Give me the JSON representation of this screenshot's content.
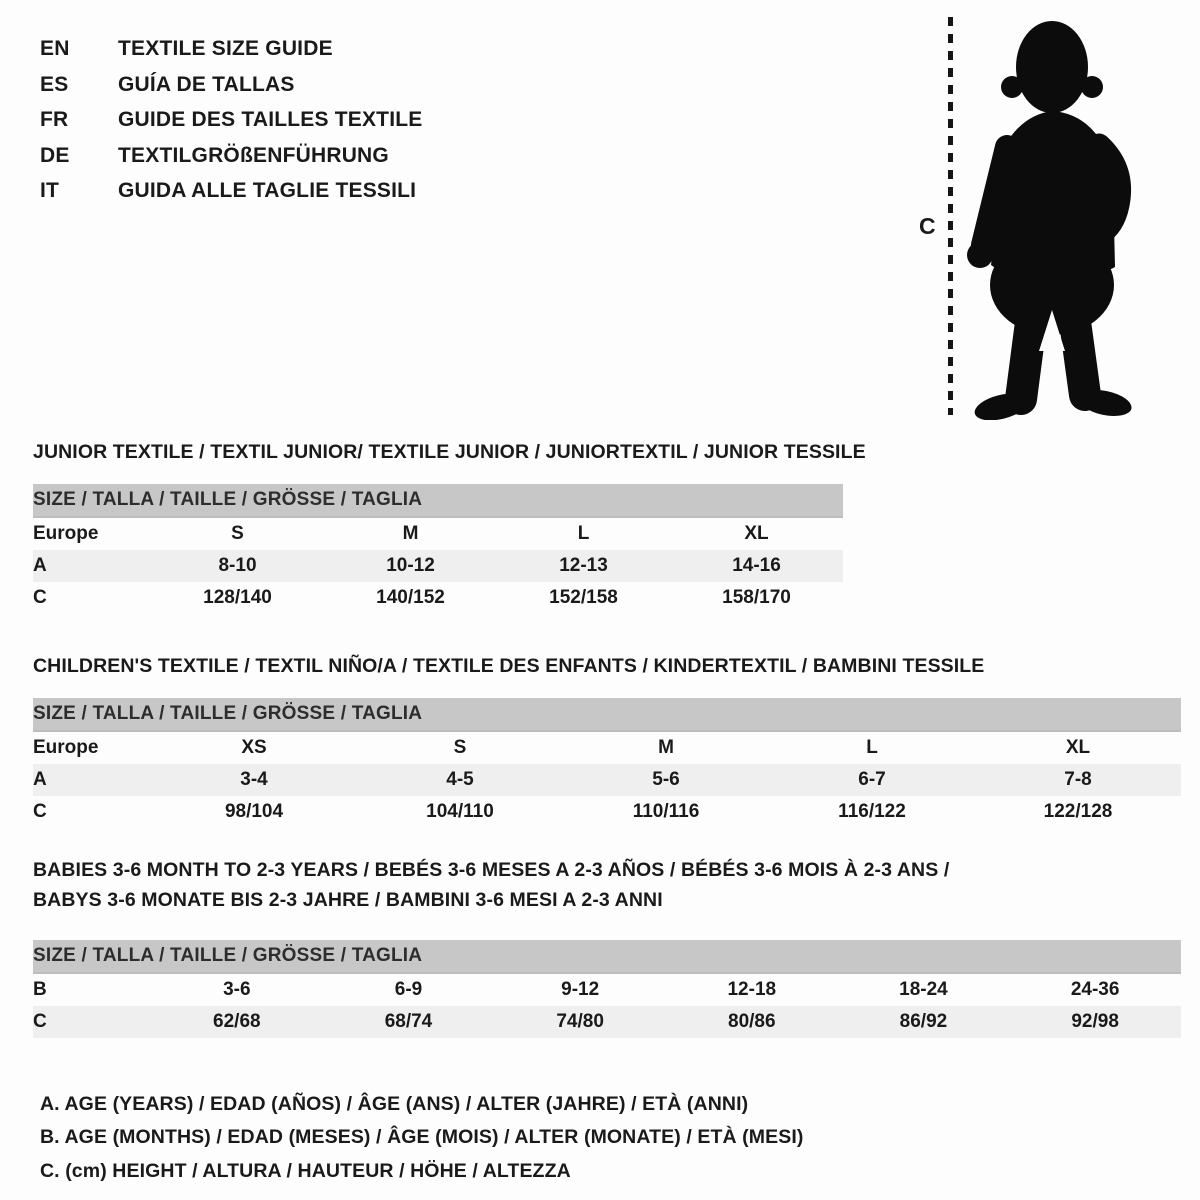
{
  "page": {
    "background": "#fdfdfd",
    "text_color": "#1a1a1a",
    "header_bar_color": "#c7c7c7",
    "stripe_color": "#efefef",
    "silhouette_color": "#0c0c0c"
  },
  "languages": [
    {
      "code": "EN",
      "label": "TEXTILE SIZE GUIDE"
    },
    {
      "code": "ES",
      "label": "GUÍA DE TALLAS"
    },
    {
      "code": "FR",
      "label": "GUIDE DES TAILLES TEXTILE"
    },
    {
      "code": "DE",
      "label": "TEXTILGRÖßENFÜHRUNG"
    },
    {
      "code": "IT",
      "label": "GUIDA ALLE TAGLIE TESSILI"
    }
  ],
  "figure": {
    "label": "C",
    "icon": "toddler-silhouette"
  },
  "sections": [
    {
      "id": "junior",
      "title_lines": [
        "JUNIOR TEXTILE / TEXTIL JUNIOR/ TEXTILE JUNIOR / JUNIORTEXTIL / JUNIOR TESSILE"
      ],
      "size_header": "SIZE / TALLA / TAILLE / GRÖSSE / TAGLIA",
      "rows": [
        {
          "label": "Europe",
          "values": [
            "S",
            "M",
            "L",
            "XL"
          ],
          "striped": false
        },
        {
          "label": "A",
          "values": [
            "8-10",
            "10-12",
            "12-13",
            "14-16"
          ],
          "striped": true
        },
        {
          "label": "C",
          "values": [
            "128/140",
            "140/152",
            "152/158",
            "158/170"
          ],
          "striped": false
        }
      ]
    },
    {
      "id": "children",
      "title_lines": [
        "CHILDREN'S TEXTILE / TEXTIL NIÑO/A / TEXTILE DES ENFANTS / KINDERTEXTIL / BAMBINI TESSILE"
      ],
      "size_header": "SIZE / TALLA / TAILLE / GRÖSSE / TAGLIA",
      "rows": [
        {
          "label": "Europe",
          "values": [
            "XS",
            "S",
            "M",
            "L",
            "XL"
          ],
          "striped": false
        },
        {
          "label": "A",
          "values": [
            "3-4",
            "4-5",
            "5-6",
            "6-7",
            "7-8"
          ],
          "striped": true
        },
        {
          "label": "C",
          "values": [
            "98/104",
            "104/110",
            "110/116",
            "116/122",
            "122/128"
          ],
          "striped": false
        }
      ]
    },
    {
      "id": "babies",
      "title_lines": [
        "BABIES 3-6 MONTH TO 2-3 YEARS / BEBÉS 3-6 MESES A 2-3 AÑOS / BÉBÉS 3-6 MOIS À 2-3 ANS /",
        "BABYS 3-6 MONATE BIS 2-3 JAHRE / BAMBINI 3-6 MESI A 2-3 ANNI"
      ],
      "size_header": "SIZE / TALLA / TAILLE / GRÖSSE / TAGLIA",
      "rows": [
        {
          "label": "B",
          "values": [
            "3-6",
            "6-9",
            "9-12",
            "12-18",
            "18-24",
            "24-36"
          ],
          "striped": false
        },
        {
          "label": "C",
          "values": [
            "62/68",
            "68/74",
            "74/80",
            "80/86",
            "86/92",
            "92/98"
          ],
          "striped": true
        }
      ]
    }
  ],
  "legend": [
    "A. AGE (YEARS) / EDAD (AÑOS) / ÂGE (ANS) / ALTER (JAHRE) / ETÀ (ANNI)",
    "B. AGE (MONTHS) / EDAD (MESES) / ÂGE (MOIS) / ALTER (MONATE) / ETÀ (MESI)",
    "C. (cm) HEIGHT / ALTURA / HAUTEUR / HÖHE / ALTEZZA"
  ]
}
